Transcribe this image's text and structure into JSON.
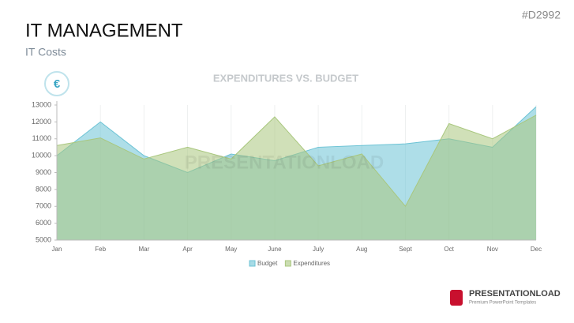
{
  "slide": {
    "title": "IT MANAGEMENT",
    "subtitle": "IT Costs",
    "code": "#D2992",
    "icon": "€",
    "watermark": "PRESENTATIONLOAD",
    "brand": "PRESENTATIONLOAD",
    "brand_tagline": "Premium PowerPoint Templates"
  },
  "chart_data": {
    "type": "area",
    "title": "EXPENDITURES VS. BUDGET",
    "categories": [
      "Jan",
      "Feb",
      "Mar",
      "Apr",
      "May",
      "June",
      "July",
      "Aug",
      "Sept",
      "Oct",
      "Nov",
      "Dec"
    ],
    "series": [
      {
        "name": "Budget",
        "color": "#6cc3d5",
        "values": [
          10000,
          12000,
          10000,
          9000,
          10100,
          9700,
          10500,
          10600,
          10700,
          11000,
          10500,
          12900
        ]
      },
      {
        "name": "Expenditures",
        "color": "#a9c77e",
        "values": [
          10600,
          11050,
          9800,
          10500,
          9800,
          12300,
          9400,
          10100,
          7000,
          11900,
          11000,
          12400
        ]
      }
    ],
    "ylim": [
      5000,
      13000
    ],
    "yticks": [
      5000,
      6000,
      7000,
      8000,
      9000,
      10000,
      11000,
      12000,
      13000
    ],
    "grid": true,
    "legend": "bottom"
  }
}
